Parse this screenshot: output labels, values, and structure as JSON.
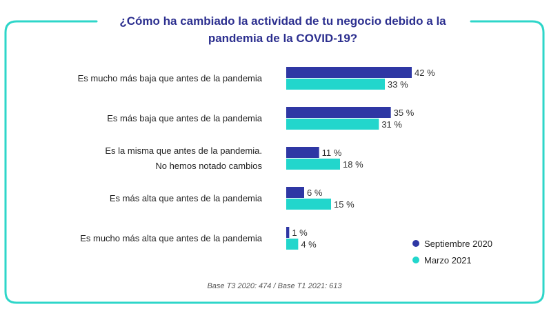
{
  "colors": {
    "frame": "#2ed6c9",
    "title": "#2c2f8f",
    "series_sep": "#2e37a4",
    "series_mar": "#22d6cc",
    "label": "#222222",
    "value": "#333333",
    "base": "#555555"
  },
  "title_lines": [
    "¿Cómo ha cambiado la actividad de tu negocio debido a la",
    "pandemia de la COVID-19?"
  ],
  "base_note": "Base T3 2020: 474 / Base T1 2021: 613",
  "chart_data": {
    "type": "bar",
    "orientation": "horizontal",
    "title": "¿Cómo ha cambiado la actividad de tu negocio debido a la pandemia de la COVID-19?",
    "xlabel": "",
    "ylabel": "",
    "unit": "%",
    "xlim": [
      0,
      42
    ],
    "grid": false,
    "legend_position": "bottom-right",
    "categories": [
      [
        "Es mucho más baja que antes de la pandemia"
      ],
      [
        "Es más baja que antes de la pandemia"
      ],
      [
        "Es la misma que antes de la pandemia.",
        "No hemos notado cambios"
      ],
      [
        "Es más alta que antes de la pandemia"
      ],
      [
        "Es mucho más alta que antes de la pandemia"
      ]
    ],
    "series": [
      {
        "name": "Septiembre 2020",
        "color": "#2e37a4",
        "values": [
          42,
          35,
          11,
          6,
          1
        ],
        "labels": [
          "42 %",
          "35 %",
          "11 %",
          "6 %",
          "1 %"
        ]
      },
      {
        "name": "Marzo 2021",
        "color": "#22d6cc",
        "values": [
          33,
          31,
          18,
          15,
          4
        ],
        "labels": [
          "33 %",
          "31 %",
          "18 %",
          "15 %",
          "4 %"
        ]
      }
    ]
  }
}
